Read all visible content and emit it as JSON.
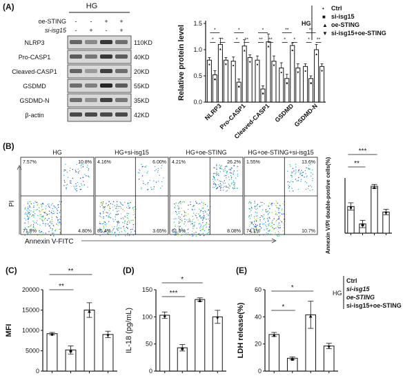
{
  "panel_labels": [
    "(A)",
    "(B)",
    "(C)",
    "(D)",
    "(E)"
  ],
  "western_blot": {
    "group_header": "HG",
    "rows": [
      {
        "label": "oe-STING",
        "signs": [
          "-",
          "-",
          "+",
          "+"
        ]
      },
      {
        "label": "si-isg15",
        "signs": [
          "-",
          "+",
          "-",
          "+"
        ]
      }
    ],
    "bands": [
      {
        "name": "NLRP3",
        "size": "110KD",
        "intensity": [
          0.55,
          0.35,
          0.8,
          0.5
        ]
      },
      {
        "name": "Pro-CASP1",
        "size": "40KD",
        "intensity": [
          0.6,
          0.45,
          0.8,
          0.6
        ]
      },
      {
        "name": "Cleaved-CASP1",
        "size": "20KD",
        "intensity": [
          0.55,
          0.25,
          0.75,
          0.5
        ]
      },
      {
        "name": "GSDMD",
        "size": "55KD",
        "intensity": [
          0.5,
          0.4,
          0.9,
          0.6
        ]
      },
      {
        "name": "GSDMD-N",
        "size": "35KD",
        "intensity": [
          0.5,
          0.3,
          0.75,
          0.45
        ]
      },
      {
        "name": "β-actin",
        "size": "42KD",
        "intensity": [
          0.7,
          0.7,
          0.7,
          0.7
        ]
      }
    ]
  },
  "legend": {
    "group": "HG",
    "items": [
      "Ctrl",
      "si-isg15",
      "oe-STING",
      "si-isg15+oe-STING"
    ]
  },
  "flow": {
    "panels": [
      {
        "title": "HG",
        "ul": "7.57%",
        "ur": "10.8%",
        "ll": "71.8%",
        "lr": "4.80%"
      },
      {
        "title": "HG+si-isg15",
        "ul": "4.16%",
        "ur": "6.00%",
        "ll": "85.4%",
        "lr": "3.65%"
      },
      {
        "title": "HG+oe-STING",
        "ul": "4.21%",
        "ur": "26.2%",
        "ll": "61.5%",
        "lr": "8.08%"
      },
      {
        "title": "HG+oe-STING+si-isg15",
        "ul": "1.55%",
        "ur": "13.6%",
        "ll": "74.1%",
        "lr": "10.7%"
      }
    ],
    "xlabel": "Annexin V-FITC",
    "ylabel": "PI"
  },
  "chart_data": [
    {
      "type": "bar",
      "panel": "A",
      "ylabel": "Relative protein level",
      "ylim": [
        0,
        1.5
      ],
      "yticks": [
        "0.0",
        "0.5",
        "1.0",
        "1.5"
      ],
      "categories": [
        "NLRP3",
        "Pro-CASP1",
        "Cleaved-CASP1",
        "GSDMD",
        "GSDMD-N"
      ],
      "series": [
        {
          "name": "Ctrl",
          "values": [
            0.8,
            0.78,
            0.8,
            0.65,
            0.68
          ],
          "err": [
            0.05,
            0.08,
            0.08,
            0.1,
            0.05
          ]
        },
        {
          "name": "si-isg15",
          "values": [
            0.52,
            0.38,
            0.25,
            0.45,
            0.45
          ],
          "err": [
            0.08,
            0.06,
            0.06,
            0.08,
            0.05
          ]
        },
        {
          "name": "oe-STING",
          "values": [
            1.1,
            1.07,
            1.15,
            1.08,
            1.0
          ],
          "err": [
            0.12,
            0.12,
            0.15,
            0.05,
            0.1
          ]
        },
        {
          "name": "si-isg15+oe-STING",
          "values": [
            0.8,
            0.85,
            0.78,
            0.65,
            0.68
          ],
          "err": [
            0.05,
            0.05,
            0.1,
            0.08,
            0.05
          ]
        }
      ],
      "significance": [
        "*",
        "*",
        "*",
        "*",
        "*",
        "**",
        "*",
        "**",
        "**",
        "**",
        "*",
        "*",
        "**",
        "*",
        "**"
      ]
    },
    {
      "type": "bar",
      "panel": "B",
      "ylabel": "Annexin Ⅴ/PI double-postive cells(%)",
      "ylim": [
        0,
        30
      ],
      "values": [
        14.5,
        5,
        25.5,
        11.5
      ],
      "err": [
        2,
        2,
        1,
        1.5
      ],
      "significance": [
        "**",
        "***"
      ]
    },
    {
      "type": "bar",
      "panel": "C",
      "ylabel": "MFI",
      "ylim": [
        0,
        20000
      ],
      "yticks": [
        "0",
        "5000",
        "10000",
        "15000",
        "20000"
      ],
      "values": [
        9200,
        5200,
        15000,
        9000
      ],
      "err": [
        300,
        1000,
        1800,
        800
      ],
      "significance": [
        "**",
        "**"
      ]
    },
    {
      "type": "bar",
      "panel": "D",
      "ylabel": "IL-18 (pg/mL)",
      "ylim": [
        0,
        150
      ],
      "yticks": [
        "0",
        "50",
        "100",
        "150"
      ],
      "values": [
        103,
        43,
        132,
        100
      ],
      "err": [
        6,
        6,
        3,
        12
      ],
      "significance": [
        "***",
        "*"
      ]
    },
    {
      "type": "bar",
      "panel": "E",
      "ylabel": "LDH release(%)",
      "ylim": [
        0,
        60
      ],
      "yticks": [
        "0",
        "20",
        "40",
        "60"
      ],
      "values": [
        27,
        9.5,
        41.5,
        18.5
      ],
      "err": [
        1.5,
        1,
        10,
        2
      ],
      "significance": [
        "*",
        "*"
      ]
    }
  ]
}
